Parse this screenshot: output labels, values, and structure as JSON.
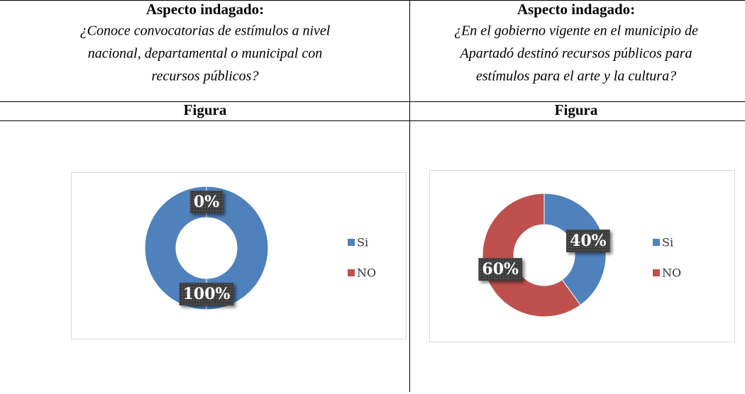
{
  "table": {
    "headings": [
      "Aspecto indagado:",
      "Aspecto indagado:"
    ],
    "questions": [
      [
        "¿Conoce convocatorias de estímulos a nivel",
        "nacional, departamental o municipal con",
        "recursos públicos?"
      ],
      [
        "¿En el gobierno vigente en el municipio de",
        "Apartadó destinó recursos públicos para",
        "estímulos para el arte y la cultura?"
      ]
    ],
    "figure_labels": [
      "Figura",
      "Figura"
    ]
  },
  "chart_data": [
    {
      "type": "donut",
      "categories": [
        "Si",
        "NO"
      ],
      "values": [
        100,
        0
      ],
      "value_labels": [
        "100%",
        "0%"
      ],
      "colors": [
        "#4f81bd",
        "#c0504d"
      ],
      "legend": "right"
    },
    {
      "type": "donut",
      "categories": [
        "Si",
        "NO"
      ],
      "values": [
        40,
        60
      ],
      "value_labels": [
        "40%",
        "60%"
      ],
      "colors": [
        "#4f81bd",
        "#c0504d"
      ],
      "legend": "right"
    }
  ]
}
